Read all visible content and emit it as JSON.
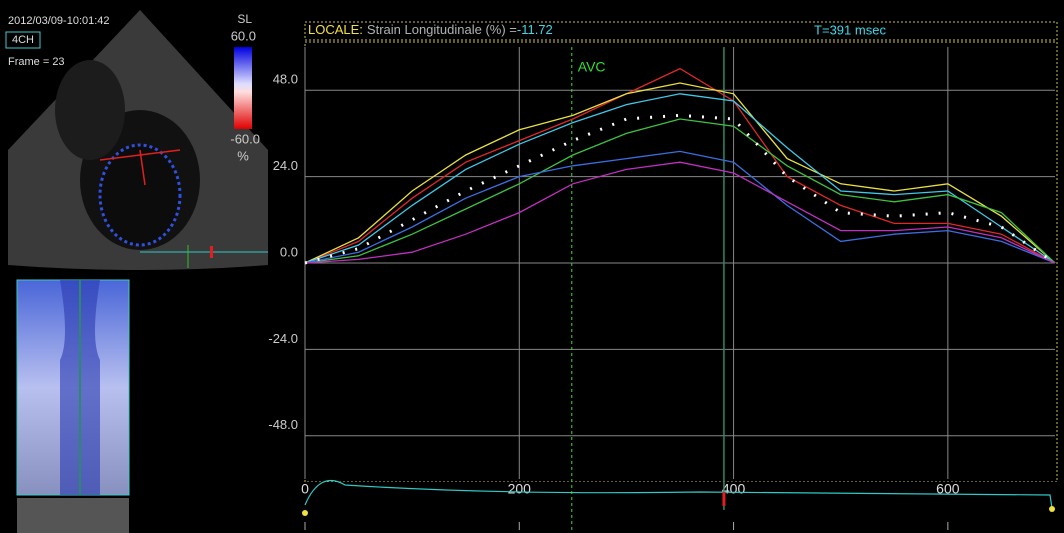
{
  "image_panel": {
    "timestamp": "2012/03/09-10:01:42",
    "view": "4CH",
    "frame": "Frame = 23",
    "scale_label": "SL",
    "scale_max": "60.0",
    "scale_min": "-60.0",
    "scale_unit": "%"
  },
  "chart_data": {
    "type": "line",
    "title_prefix": "LOCALE:",
    "title": "Strain Longitudinale (%) =",
    "title_value": "-11.72",
    "time_label": "T=391 msec",
    "annotation": {
      "label": "AVC",
      "x": 249,
      "color": "#33dd33"
    },
    "cursor_x": 391,
    "x": [
      0,
      50,
      100,
      150,
      200,
      250,
      300,
      350,
      400,
      450,
      500,
      550,
      600,
      650,
      700
    ],
    "xlim": [
      0,
      700
    ],
    "xticks": [
      0,
      200,
      400,
      600
    ],
    "ylim": [
      -60,
      60
    ],
    "yticks": [
      {
        "value": -48,
        "label": "-48.0"
      },
      {
        "value": -24,
        "label": "-24.0"
      },
      {
        "value": 0,
        "label": "0.0"
      },
      {
        "value": 24,
        "label": "24.0"
      },
      {
        "value": 48,
        "label": "48.0"
      }
    ],
    "grid": true,
    "series": [
      {
        "color": "#e0282a",
        "values": [
          0,
          6,
          18,
          28,
          34,
          40,
          47,
          54,
          45,
          24,
          16,
          11,
          11,
          8,
          0
        ]
      },
      {
        "color": "#e8e040",
        "values": [
          0,
          7,
          20,
          30,
          37,
          41,
          47,
          50,
          47,
          29,
          22,
          20,
          22,
          13,
          0
        ]
      },
      {
        "color": "#40c8e8",
        "values": [
          0,
          5,
          16,
          26,
          33,
          39,
          44,
          47,
          45,
          32,
          20,
          19,
          20,
          10,
          0
        ]
      },
      {
        "color": "#40c040",
        "values": [
          0,
          2,
          8,
          15,
          22,
          30,
          36,
          40,
          38,
          27,
          19,
          17,
          19,
          14,
          0
        ]
      },
      {
        "color": "#3a6ee0",
        "values": [
          0,
          3,
          10,
          18,
          24,
          27,
          29,
          31,
          28,
          16,
          6,
          8,
          9,
          6,
          0
        ]
      },
      {
        "color": "#c030c0",
        "values": [
          0,
          1,
          3,
          8,
          14,
          22,
          26,
          28,
          25,
          17,
          9,
          9,
          10,
          7,
          0
        ]
      },
      {
        "color": "#ffffff",
        "style": "dotted",
        "values": [
          0,
          4,
          12,
          20,
          27,
          34,
          40,
          41,
          40,
          24,
          14,
          13,
          14,
          10,
          0
        ]
      }
    ]
  }
}
